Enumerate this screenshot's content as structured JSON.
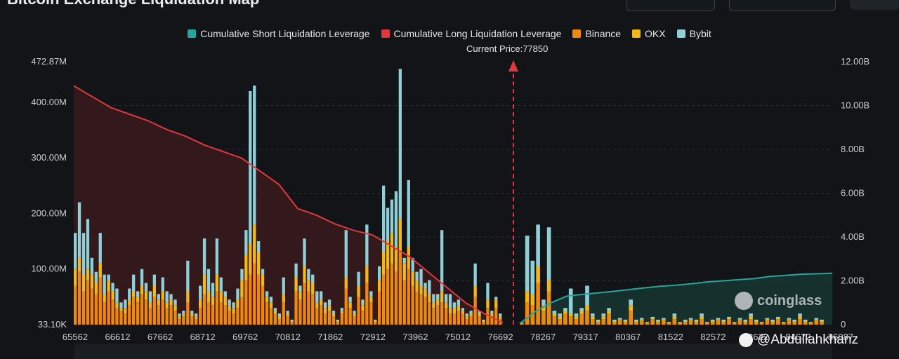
{
  "header": {
    "title": "Bitcoin Exchange Liquidation Map"
  },
  "legend": [
    {
      "label": "Cumulative Short Liquidation Leverage",
      "color": "#26a69a"
    },
    {
      "label": "Cumulative Long Liquidation Leverage",
      "color": "#e0383e"
    },
    {
      "label": "Binance",
      "color": "#f0880e"
    },
    {
      "label": "OKX",
      "color": "#f2b71b"
    },
    {
      "label": "Bybit",
      "color": "#8ecfd8"
    }
  ],
  "current_price_label": "Current Price:77850",
  "watermark": "coinglass",
  "handle": "@Abdullahkhanz",
  "chart_data": {
    "type": "bar",
    "y_left_ticks": [
      "472.87M",
      "400.00M",
      "300.00M",
      "200.00M",
      "100.00M",
      "33.10K"
    ],
    "y_left_values": [
      472.87,
      400,
      300,
      200,
      100,
      0
    ],
    "y_right_ticks": [
      "12.00B",
      "10.00B",
      "8.00B",
      "6.00B",
      "4.00B",
      "2.00B",
      "0"
    ],
    "x_ticks": [
      "65562",
      "66612",
      "67662",
      "68712",
      "69762",
      "70812",
      "71862",
      "72912",
      "73962",
      "75012",
      "76692",
      "78267",
      "79317",
      "80367",
      "81522",
      "82572",
      "83622",
      "84672",
      "86087"
    ],
    "current_price": 77850,
    "bars_left": [
      {
        "b": 70,
        "o": 30,
        "y": 65
      },
      {
        "b": 95,
        "o": 25,
        "y": 100
      },
      {
        "b": 60,
        "o": 30,
        "y": 75
      },
      {
        "b": 80,
        "o": 20,
        "y": 90
      },
      {
        "b": 65,
        "o": 25,
        "y": 30
      },
      {
        "b": 55,
        "o": 20,
        "y": 20
      },
      {
        "b": 85,
        "o": 25,
        "y": 55
      },
      {
        "b": 40,
        "o": 15,
        "y": 35
      },
      {
        "b": 60,
        "o": 20,
        "y": 10
      },
      {
        "b": 45,
        "o": 15,
        "y": 15
      },
      {
        "b": 30,
        "o": 10,
        "y": 25
      },
      {
        "b": 25,
        "o": 5,
        "y": 10
      },
      {
        "b": 20,
        "o": 10,
        "y": 15
      },
      {
        "b": 35,
        "o": 10,
        "y": 20
      },
      {
        "b": 50,
        "o": 10,
        "y": 30
      },
      {
        "b": 40,
        "o": 10,
        "y": 10
      },
      {
        "b": 55,
        "o": 15,
        "y": 30
      },
      {
        "b": 45,
        "o": 15,
        "y": 15
      },
      {
        "b": 30,
        "o": 10,
        "y": 20
      },
      {
        "b": 50,
        "o": 20,
        "y": 20
      },
      {
        "b": 35,
        "o": 10,
        "y": 10
      },
      {
        "b": 45,
        "o": 15,
        "y": 25
      },
      {
        "b": 30,
        "o": 10,
        "y": 20
      },
      {
        "b": 35,
        "o": 10,
        "y": 10
      },
      {
        "b": 25,
        "o": 10,
        "y": 10
      },
      {
        "b": 10,
        "o": 5,
        "y": 5
      },
      {
        "b": 15,
        "o": 5,
        "y": 5
      },
      {
        "b": 40,
        "o": 20,
        "y": 55
      },
      {
        "b": 15,
        "o": 5,
        "y": 5
      },
      {
        "b": 10,
        "o": 5,
        "y": 5
      },
      {
        "b": 30,
        "o": 15,
        "y": 25
      },
      {
        "b": 55,
        "o": 35,
        "y": 65
      },
      {
        "b": 40,
        "o": 20,
        "y": 40
      },
      {
        "b": 35,
        "o": 15,
        "y": 25
      },
      {
        "b": 60,
        "o": 30,
        "y": 65
      },
      {
        "b": 40,
        "o": 20,
        "y": 25
      },
      {
        "b": 35,
        "o": 15,
        "y": 10
      },
      {
        "b": 25,
        "o": 10,
        "y": 10
      },
      {
        "b": 20,
        "o": 10,
        "y": 10
      },
      {
        "b": 30,
        "o": 15,
        "y": 20
      },
      {
        "b": 50,
        "o": 30,
        "y": 20
      },
      {
        "b": 80,
        "o": 45,
        "y": 45
      },
      {
        "b": 90,
        "o": 55,
        "y": 275
      },
      {
        "b": 110,
        "o": 70,
        "y": 250
      },
      {
        "b": 90,
        "o": 40,
        "y": 20
      },
      {
        "b": 70,
        "o": 20,
        "y": 10
      },
      {
        "b": 40,
        "o": 10,
        "y": 10
      },
      {
        "b": 30,
        "o": 10,
        "y": 10
      },
      {
        "b": 20,
        "o": 5,
        "y": 5
      },
      {
        "b": 10,
        "o": 5,
        "y": 5
      },
      {
        "b": 40,
        "o": 15,
        "y": 30
      },
      {
        "b": 15,
        "o": 5,
        "y": 5
      },
      {
        "b": 5,
        "o": 2,
        "y": 2
      },
      {
        "b": 60,
        "o": 25,
        "y": 25
      },
      {
        "b": 45,
        "o": 15,
        "y": 10
      },
      {
        "b": 75,
        "o": 30,
        "y": 50
      },
      {
        "b": 60,
        "o": 20,
        "y": 20
      },
      {
        "b": 55,
        "o": 20,
        "y": 15
      },
      {
        "b": 30,
        "o": 10,
        "y": 20
      },
      {
        "b": 35,
        "o": 10,
        "y": 15
      },
      {
        "b": 20,
        "o": 10,
        "y": 10
      },
      {
        "b": 25,
        "o": 10,
        "y": 10
      },
      {
        "b": 15,
        "o": 5,
        "y": 5
      },
      {
        "b": 5,
        "o": 2,
        "y": 2
      },
      {
        "b": 20,
        "o": 5,
        "y": 5
      },
      {
        "b": 65,
        "o": 20,
        "y": 85
      },
      {
        "b": 30,
        "o": 10,
        "y": 10
      },
      {
        "b": 15,
        "o": 5,
        "y": 5
      },
      {
        "b": 50,
        "o": 20,
        "y": 25
      },
      {
        "b": 25,
        "o": 10,
        "y": 10
      },
      {
        "b": 75,
        "o": 30,
        "y": 75
      },
      {
        "b": 40,
        "o": 10,
        "y": 10
      },
      {
        "b": 5,
        "o": 2,
        "y": 2
      },
      {
        "b": 60,
        "o": 20,
        "y": 25
      },
      {
        "b": 90,
        "o": 40,
        "y": 120
      },
      {
        "b": 100,
        "o": 50,
        "y": 60
      },
      {
        "b": 110,
        "o": 55,
        "y": 60
      },
      {
        "b": 95,
        "o": 45,
        "y": 100
      },
      {
        "b": 130,
        "o": 60,
        "y": 270
      },
      {
        "b": 80,
        "o": 30,
        "y": 10
      },
      {
        "b": 100,
        "o": 40,
        "y": 120
      },
      {
        "b": 70,
        "o": 25,
        "y": 25
      },
      {
        "b": 60,
        "o": 20,
        "y": 15
      },
      {
        "b": 55,
        "o": 15,
        "y": 30
      },
      {
        "b": 50,
        "o": 15,
        "y": 10
      },
      {
        "b": 40,
        "o": 15,
        "y": 25
      },
      {
        "b": 30,
        "o": 10,
        "y": 15
      },
      {
        "b": 35,
        "o": 10,
        "y": 10
      },
      {
        "b": 40,
        "o": 20,
        "y": 110
      },
      {
        "b": 30,
        "o": 10,
        "y": 15
      },
      {
        "b": 20,
        "o": 10,
        "y": 25
      },
      {
        "b": 20,
        "o": 10,
        "y": 10
      },
      {
        "b": 25,
        "o": 10,
        "y": 10
      },
      {
        "b": 20,
        "o": 5,
        "y": 5
      },
      {
        "b": 10,
        "o": 5,
        "y": 5
      },
      {
        "b": 15,
        "o": 5,
        "y": 5
      },
      {
        "b": 50,
        "o": 20,
        "y": 40
      },
      {
        "b": 15,
        "o": 5,
        "y": 5
      },
      {
        "b": 5,
        "o": 2,
        "y": 2
      },
      {
        "b": 30,
        "o": 15,
        "y": 30
      },
      {
        "b": 15,
        "o": 5,
        "y": 5
      },
      {
        "b": 30,
        "o": 15,
        "y": 5
      },
      {
        "b": 10,
        "o": 5,
        "y": 5
      }
    ],
    "bars_right": [
      {
        "b": 2,
        "o": 1,
        "y": 1
      },
      {
        "b": 40,
        "o": 20,
        "y": 100
      },
      {
        "b": 35,
        "o": 20,
        "y": 60
      },
      {
        "b": 75,
        "o": 30,
        "y": 75
      },
      {
        "b": 25,
        "o": 10,
        "y": 10
      },
      {
        "b": 60,
        "o": 20,
        "y": 95
      },
      {
        "b": 15,
        "o": 5,
        "y": 5
      },
      {
        "b": 10,
        "o": 5,
        "y": 5
      },
      {
        "b": 20,
        "o": 5,
        "y": 5
      },
      {
        "b": 15,
        "o": 5,
        "y": 45
      },
      {
        "b": 10,
        "o": 5,
        "y": 5
      },
      {
        "b": 20,
        "o": 5,
        "y": 5
      },
      {
        "b": 25,
        "o": 10,
        "y": 35
      },
      {
        "b": 10,
        "o": 5,
        "y": 5
      },
      {
        "b": 5,
        "o": 2,
        "y": 2
      },
      {
        "b": 10,
        "o": 5,
        "y": 5
      },
      {
        "b": 20,
        "o": 5,
        "y": 5
      },
      {
        "b": 5,
        "o": 2,
        "y": 2
      },
      {
        "b": 8,
        "o": 2,
        "y": 2
      },
      {
        "b": 5,
        "o": 2,
        "y": 2
      },
      {
        "b": 25,
        "o": 10,
        "y": 10
      },
      {
        "b": 5,
        "o": 2,
        "y": 2
      },
      {
        "b": 8,
        "o": 2,
        "y": 2
      },
      {
        "b": 3,
        "o": 1,
        "y": 1
      },
      {
        "b": 10,
        "o": 2,
        "y": 2
      },
      {
        "b": 5,
        "o": 2,
        "y": 2
      },
      {
        "b": 8,
        "o": 2,
        "y": 2
      },
      {
        "b": 3,
        "o": 1,
        "y": 1
      },
      {
        "b": 10,
        "o": 5,
        "y": 5
      },
      {
        "b": 3,
        "o": 1,
        "y": 1
      },
      {
        "b": 5,
        "o": 2,
        "y": 2
      },
      {
        "b": 8,
        "o": 2,
        "y": 2
      },
      {
        "b": 5,
        "o": 2,
        "y": 2
      },
      {
        "b": 10,
        "o": 5,
        "y": 5
      },
      {
        "b": 3,
        "o": 1,
        "y": 1
      },
      {
        "b": 5,
        "o": 2,
        "y": 2
      },
      {
        "b": 8,
        "o": 2,
        "y": 2
      },
      {
        "b": 5,
        "o": 2,
        "y": 2
      },
      {
        "b": 10,
        "o": 2,
        "y": 2
      },
      {
        "b": 3,
        "o": 1,
        "y": 1
      },
      {
        "b": 8,
        "o": 2,
        "y": 2
      },
      {
        "b": 5,
        "o": 2,
        "y": 2
      },
      {
        "b": 10,
        "o": 5,
        "y": 5
      },
      {
        "b": 5,
        "o": 2,
        "y": 2
      },
      {
        "b": 3,
        "o": 1,
        "y": 1
      },
      {
        "b": 8,
        "o": 2,
        "y": 2
      },
      {
        "b": 5,
        "o": 2,
        "y": 2
      },
      {
        "b": 10,
        "o": 2,
        "y": 2
      },
      {
        "b": 3,
        "o": 1,
        "y": 1
      },
      {
        "b": 8,
        "o": 2,
        "y": 2
      },
      {
        "b": 5,
        "o": 2,
        "y": 2
      },
      {
        "b": 10,
        "o": 5,
        "y": 5
      },
      {
        "b": 5,
        "o": 2,
        "y": 2
      },
      {
        "b": 3,
        "o": 1,
        "y": 1
      },
      {
        "b": 8,
        "o": 2,
        "y": 2
      },
      {
        "b": 5,
        "o": 2,
        "y": 2
      }
    ],
    "long_cumulative_B": [
      10.9,
      10.4,
      9.9,
      9.6,
      9.3,
      8.9,
      8.6,
      8.2,
      7.9,
      7.6,
      7.0,
      6.4,
      5.3,
      5.0,
      4.6,
      4.3,
      4.1,
      3.6,
      3.1,
      2.4,
      1.7,
      1.0,
      0.5,
      0.1
    ],
    "short_cumulative_B": [
      0.05,
      0.6,
      1.0,
      1.3,
      1.38,
      1.45,
      1.52,
      1.6,
      1.68,
      1.75,
      1.8,
      1.87,
      1.95,
      2.0,
      2.05,
      2.1,
      2.2,
      2.25,
      2.3,
      2.32,
      2.35
    ]
  }
}
